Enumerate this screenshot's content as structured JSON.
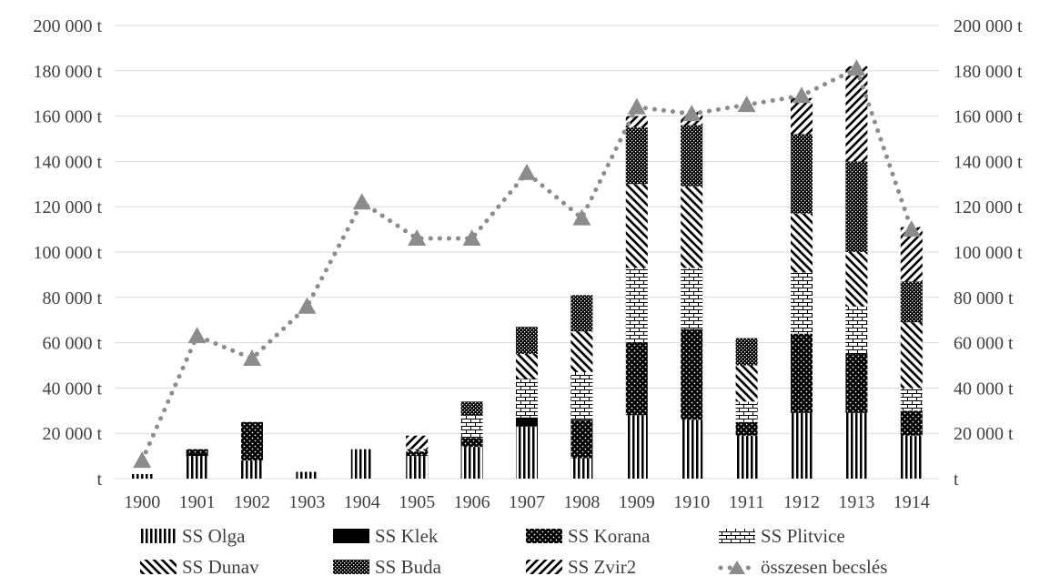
{
  "chart_data": {
    "type": "bar",
    "stacked": true,
    "categories": [
      "1900",
      "1901",
      "1902",
      "1903",
      "1904",
      "1905",
      "1906",
      "1907",
      "1908",
      "1909",
      "1910",
      "1911",
      "1912",
      "1913",
      "1914"
    ],
    "y_ticks": [
      "t",
      "20 000 t",
      "40 000 t",
      "60 000 t",
      "80 000 t",
      "100 000 t",
      "120 000 t",
      "140 000 t",
      "160 000 t",
      "180 000 t",
      "200 000 t"
    ],
    "ylim": [
      0,
      200000
    ],
    "grid": true,
    "legend_position": "bottom",
    "series": [
      {
        "name": "SS Olga",
        "pattern": "vlines",
        "values": [
          2000,
          10000,
          8000,
          3000,
          13000,
          10000,
          14000,
          23000,
          9000,
          28000,
          26000,
          19000,
          29000,
          29000,
          19000
        ]
      },
      {
        "name": "SS Klek",
        "pattern": "solid",
        "values": [
          0,
          1000,
          0,
          0,
          0,
          0,
          0,
          4000,
          0,
          0,
          0,
          0,
          0,
          0,
          0
        ]
      },
      {
        "name": "SS Korana",
        "pattern": "dots",
        "values": [
          0,
          2000,
          17000,
          0,
          0,
          2000,
          4000,
          0,
          17000,
          32000,
          40000,
          6000,
          35000,
          26000,
          11000
        ]
      },
      {
        "name": "SS Plitvice",
        "pattern": "bricks",
        "values": [
          0,
          0,
          0,
          0,
          0,
          0,
          10000,
          17000,
          21000,
          33000,
          27000,
          9000,
          27000,
          21000,
          10000
        ]
      },
      {
        "name": "SS Dunav",
        "pattern": "backdiag",
        "values": [
          0,
          0,
          0,
          0,
          0,
          1000,
          0,
          11000,
          18000,
          37000,
          36000,
          16000,
          26000,
          24000,
          29000
        ]
      },
      {
        "name": "SS Buda",
        "pattern": "checks",
        "values": [
          0,
          0,
          0,
          0,
          0,
          0,
          6000,
          12000,
          16000,
          25000,
          27000,
          12000,
          35000,
          40000,
          18000
        ]
      },
      {
        "name": "SS Zvir2",
        "pattern": "fwddiag",
        "values": [
          0,
          0,
          0,
          0,
          0,
          6000,
          0,
          0,
          0,
          5000,
          6000,
          0,
          16000,
          42000,
          24000
        ]
      }
    ],
    "line_series": {
      "name": "összesen becslés",
      "values": [
        8000,
        63000,
        53000,
        76000,
        122000,
        106000,
        106000,
        135000,
        115000,
        164000,
        161000,
        165000,
        169000,
        181000,
        110000
      ]
    },
    "colors": {
      "line": "#8c8c8c",
      "grid": "#d9d9d9",
      "bar_fg": "#000000",
      "axis_text": "#404040"
    }
  }
}
